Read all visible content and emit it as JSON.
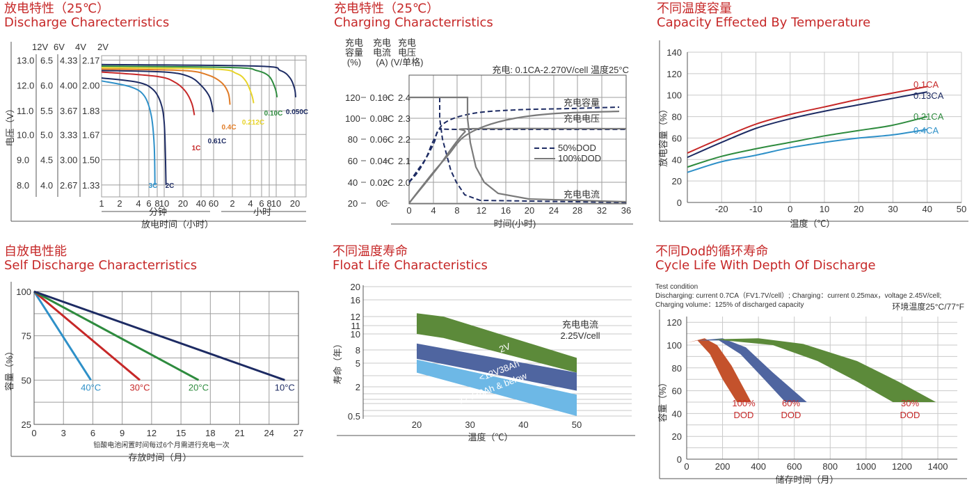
{
  "colors": {
    "title": "#c62828",
    "grid": "#9e9e9e",
    "axis": "#555555",
    "navy": "#1d2b63",
    "red": "#c62828",
    "green": "#2e8b3e",
    "blue": "#2e90c8",
    "orange": "#e07b26",
    "yellow": "#e8d42a",
    "gray": "#7a7a7a",
    "olive": "#5c8a3a",
    "slate": "#4f65a0",
    "sky": "#6db8e6",
    "rust": "#c4522c"
  },
  "chart_data": [
    {
      "id": "discharge",
      "type": "line",
      "title_cn": "放电特性（25℃）",
      "title": "Discharge Charecterristics",
      "ylabel": "电压（V）",
      "voltage_headers": [
        "12V",
        "6V",
        "4V",
        "2V"
      ],
      "voltage_rows": [
        [
          "13.0",
          "6.5",
          "4.33",
          "2.17"
        ],
        [
          "12.0",
          "6.0",
          "4.00",
          "2.00"
        ],
        [
          "11.0",
          "5.5",
          "3.67",
          "1.83"
        ],
        [
          "10.0",
          "5.0",
          "3.33",
          "1.67"
        ],
        [
          "9.0",
          "4.5",
          "3.00",
          "1.50"
        ],
        [
          "8.0",
          "4.0",
          "2.67",
          "1.33"
        ]
      ],
      "x_ticks": [
        "1",
        "2",
        "4",
        "6",
        "8",
        "10",
        "20",
        "40",
        "60",
        "2",
        "4",
        "6",
        "8",
        "10",
        "20"
      ],
      "x_group_minutes": "分钟",
      "x_group_hours": "小时",
      "xlabel": "放电时间（小时）",
      "series": [
        {
          "name": "3C",
          "color": "blue",
          "points": [
            [
              1,
              2.03
            ],
            [
              3,
              1.99
            ],
            [
              5,
              1.93
            ],
            [
              6.5,
              1.8
            ],
            [
              7.2,
              1.6
            ],
            [
              7.4,
              1.33
            ]
          ]
        },
        {
          "name": "2C",
          "color": "navy",
          "points": [
            [
              1,
              2.05
            ],
            [
              4,
              2.02
            ],
            [
              7,
              1.97
            ],
            [
              9,
              1.88
            ],
            [
              10,
              1.75
            ],
            [
              10.5,
              1.5
            ],
            [
              10.7,
              1.33
            ]
          ]
        },
        {
          "name": "1C",
          "color": "red",
          "points": [
            [
              1,
              2.09
            ],
            [
              8,
              2.06
            ],
            [
              15,
              2.02
            ],
            [
              22,
              1.96
            ],
            [
              28,
              1.88
            ],
            [
              31,
              1.8
            ]
          ]
        },
        {
          "name": "0.61C",
          "color": "navy",
          "points": [
            [
              1,
              2.1
            ],
            [
              10,
              2.09
            ],
            [
              25,
              2.06
            ],
            [
              40,
              2.0
            ],
            [
              53,
              1.92
            ],
            [
              59,
              1.82
            ]
          ]
        },
        {
          "name": "0.4C",
          "color": "orange",
          "points": [
            [
              1,
              2.11
            ],
            [
              20,
              2.1
            ],
            [
              50,
              2.07
            ],
            [
              80,
              2.02
            ],
            [
              103,
              1.95
            ],
            [
              110,
              1.87
            ]
          ]
        },
        {
          "name": "0.212C",
          "color": "yellow",
          "points": [
            [
              1,
              2.12
            ],
            [
              60,
              2.11
            ],
            [
              140,
              2.08
            ],
            [
              200,
              2.03
            ],
            [
              250,
              1.94
            ],
            [
              270,
              1.88
            ]
          ]
        },
        {
          "name": "0.10C",
          "color": "green",
          "points": [
            [
              1,
              2.13
            ],
            [
              120,
              2.12
            ],
            [
              300,
              2.1
            ],
            [
              480,
              2.06
            ],
            [
              580,
              1.98
            ],
            [
              620,
              1.92
            ]
          ]
        },
        {
          "name": "0.050C",
          "color": "navy",
          "points": [
            [
              1,
              2.14
            ],
            [
              300,
              2.13
            ],
            [
              700,
              2.1
            ],
            [
              1000,
              2.05
            ],
            [
              1180,
              1.98
            ],
            [
              1240,
              1.92
            ]
          ]
        }
      ]
    },
    {
      "id": "charging",
      "type": "line",
      "title_cn": "充电特性（25℃）",
      "title": "Charging Characterristics",
      "col_headers": [
        "充电\n容量\n(%)",
        "充电\n电流\n(A)",
        "充电\n电压\n(V/单格)"
      ],
      "y_rows": [
        [
          "120",
          "0.10C",
          "2.4"
        ],
        [
          "100",
          "0.08C",
          "2.3"
        ],
        [
          "80",
          "0.06C",
          "2.2"
        ],
        [
          "60",
          "0.04C",
          "2.1"
        ],
        [
          "40",
          "0.02C",
          "2.0"
        ],
        [
          "20",
          "0C",
          ""
        ]
      ],
      "note": "充电: 0.1CA-2.270V/cell  温度25°C",
      "x_ticks": [
        "0",
        "4",
        "8",
        "12",
        "16",
        "20",
        "24",
        "28",
        "32",
        "36"
      ],
      "xlabel": "时间(小时)",
      "legend": [
        "50%DOD",
        "100%DOD"
      ],
      "curve_labels": [
        "充电容量",
        "充电电压",
        "充电电流"
      ]
    },
    {
      "id": "capacity_temp",
      "type": "line",
      "title_cn": "不同温度容量",
      "title": "Capacity Effected By Temperature",
      "ylabel": "放电容量（%）",
      "xlabel": "温度（℃）",
      "y_ticks": [
        "0",
        "20",
        "40",
        "60",
        "80",
        "100",
        "120",
        "140"
      ],
      "x_ticks": [
        "-20",
        "-10",
        "0",
        "10",
        "20",
        "30",
        "40",
        "50"
      ],
      "ylim": [
        0,
        140
      ],
      "xlim": [
        -30,
        50
      ],
      "series": [
        {
          "name": "0.1CA",
          "color": "red",
          "points": [
            [
              -30,
              46
            ],
            [
              -20,
              60
            ],
            [
              -10,
              73
            ],
            [
              0,
              82
            ],
            [
              10,
              89
            ],
            [
              20,
              96
            ],
            [
              30,
              102
            ],
            [
              40,
              108
            ]
          ]
        },
        {
          "name": "0.13CA",
          "color": "navy",
          "points": [
            [
              -30,
              42
            ],
            [
              -20,
              56
            ],
            [
              -10,
              69
            ],
            [
              0,
              78
            ],
            [
              10,
              85
            ],
            [
              20,
              91
            ],
            [
              30,
              97
            ],
            [
              40,
              103
            ]
          ]
        },
        {
          "name": "0.21CA",
          "color": "green",
          "points": [
            [
              -30,
              33
            ],
            [
              -20,
              43
            ],
            [
              -10,
              50
            ],
            [
              0,
              56
            ],
            [
              10,
              62
            ],
            [
              20,
              67
            ],
            [
              30,
              72
            ],
            [
              40,
              80
            ]
          ]
        },
        {
          "name": "0.4CA",
          "color": "blue",
          "points": [
            [
              -30,
              28
            ],
            [
              -20,
              38
            ],
            [
              -10,
              44
            ],
            [
              0,
              51
            ],
            [
              10,
              56
            ],
            [
              20,
              60
            ],
            [
              30,
              63
            ],
            [
              40,
              68
            ]
          ]
        }
      ]
    },
    {
      "id": "self_discharge",
      "type": "line",
      "title_cn": "自放电性能",
      "title": "Self Discharge Characterristics",
      "ylabel": "容量（%）",
      "xlabel": "存放时间（月）",
      "note": "铅酸电池闲置时间每过6个月需进行充电一次",
      "y_ticks": [
        "25",
        "50",
        "75",
        "100"
      ],
      "x_ticks": [
        "0",
        "3",
        "6",
        "9",
        "12",
        "15",
        "18",
        "21",
        "24",
        "27"
      ],
      "ylim": [
        25,
        100
      ],
      "xlim": [
        0,
        27
      ],
      "series": [
        {
          "name": "40°C",
          "color": "blue",
          "points": [
            [
              0,
              100
            ],
            [
              5.8,
              50
            ]
          ]
        },
        {
          "name": "30°C",
          "color": "red",
          "points": [
            [
              0,
              100
            ],
            [
              10.8,
              50
            ]
          ]
        },
        {
          "name": "20°C",
          "color": "green",
          "points": [
            [
              0,
              100
            ],
            [
              16.8,
              50
            ]
          ]
        },
        {
          "name": "10°C",
          "color": "navy",
          "points": [
            [
              0,
              100
            ],
            [
              25.6,
              50
            ]
          ]
        }
      ]
    },
    {
      "id": "float_life",
      "type": "area",
      "title_cn": "不同温度寿命",
      "title": "Float Life Characteristics",
      "ylabel": "寿命（年）",
      "xlabel": "温度（℃）",
      "note": "充电电流\n2.25V/cell",
      "y_ticks": [
        "0.5",
        "2",
        "5",
        "8",
        "10",
        "11",
        "12",
        "16",
        "20"
      ],
      "x_ticks": [
        "20",
        "30",
        "40",
        "50"
      ],
      "series": [
        {
          "name": "2V",
          "color": "olive",
          "upper": [
            [
              20,
              12.8
            ],
            [
              25,
              12.0
            ],
            [
              50,
              6.2
            ]
          ],
          "lower": [
            [
              20,
              10.0
            ],
            [
              25,
              9.5
            ],
            [
              50,
              3.8
            ]
          ]
        },
        {
          "name": "<12V38Ah",
          "color": "slate",
          "upper": [
            [
              20,
              8.8
            ],
            [
              50,
              3.8
            ]
          ],
          "lower": [
            [
              20,
              6.0
            ],
            [
              50,
              1.8
            ]
          ]
        },
        {
          "name": "12V38Ah & below",
          "color": "sky",
          "upper": [
            [
              20,
              5.8
            ],
            [
              50,
              1.6
            ]
          ],
          "lower": [
            [
              20,
              3.8
            ],
            [
              50,
              0.5
            ]
          ]
        }
      ]
    },
    {
      "id": "cycle_life",
      "type": "area",
      "title_cn": "不同Dod的循环寿命",
      "title": "Cycle Life With Depth Of Discharge",
      "test_lines": [
        "Test condition",
        "Discharging: current 0.7CA（FV1.7V/cell）; Charging：current 0.25max，voltage 2.45V/cell;",
        "Charging volume：125% of discharged capacity"
      ],
      "ambient": "环境温度25°C/77°F",
      "ylabel": "容量（%）",
      "xlabel": "储存时间（月）",
      "y_ticks": [
        "0",
        "10",
        "20",
        "30",
        "40",
        "50",
        "60",
        "70",
        "80",
        "90",
        "100",
        "110",
        "120"
      ],
      "x_ticks": [
        "0",
        "200",
        "400",
        "600",
        "800",
        "1000",
        "1200",
        "1400"
      ],
      "ylim": [
        0,
        125
      ],
      "xlim": [
        0,
        1400
      ],
      "series": [
        {
          "name": "100% DOD",
          "label": [
            "100%",
            "DOD"
          ],
          "color": "rust",
          "points": [
            [
              0,
              102
            ],
            [
              100,
              106
            ],
            [
              170,
              100
            ],
            [
              250,
              82
            ],
            [
              360,
              50
            ],
            [
              280,
              50
            ],
            [
              200,
              70
            ],
            [
              130,
              92
            ],
            [
              60,
              104
            ]
          ]
        },
        {
          "name": "60% DOD",
          "label": [
            "60%",
            "DOD"
          ],
          "color": "slate",
          "points": [
            [
              60,
              104
            ],
            [
              200,
              106
            ],
            [
              330,
              98
            ],
            [
              480,
              76
            ],
            [
              670,
              50
            ],
            [
              550,
              50
            ],
            [
              420,
              72
            ],
            [
              300,
              92
            ],
            [
              180,
              104
            ]
          ]
        },
        {
          "name": "30% DOD",
          "label": [
            "30%",
            "DOD"
          ],
          "color": "olive",
          "points": [
            [
              150,
              105
            ],
            [
              400,
              106
            ],
            [
              650,
              101
            ],
            [
              950,
              86
            ],
            [
              1180,
              68
            ],
            [
              1390,
              50
            ],
            [
              1150,
              50
            ],
            [
              950,
              68
            ],
            [
              730,
              86
            ],
            [
              480,
              100
            ]
          ]
        }
      ]
    }
  ]
}
